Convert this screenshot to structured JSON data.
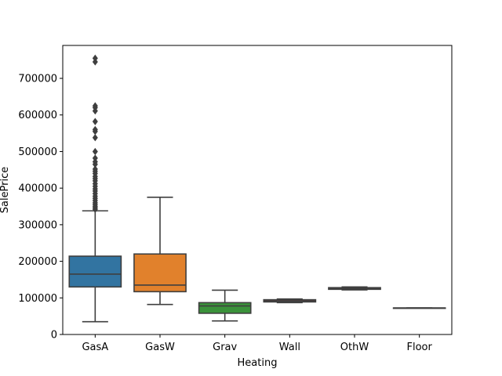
{
  "chart_data": {
    "type": "box",
    "xlabel": "Heating",
    "ylabel": "SalePrice",
    "categories": [
      "GasA",
      "GasW",
      "Grav",
      "Wall",
      "OthW",
      "Floor"
    ],
    "ylim": [
      0,
      790000
    ],
    "yticks": [
      0,
      100000,
      200000,
      300000,
      400000,
      500000,
      600000,
      700000
    ],
    "ytick_labels": [
      "0",
      "100000",
      "200000",
      "300000",
      "400000",
      "500000",
      "600000",
      "700000"
    ],
    "grid": false,
    "boxes": [
      {
        "category": "GasA",
        "color": "#3274a1",
        "whisker_low": 35000,
        "q1": 130000,
        "median": 165000,
        "q3": 214000,
        "whisker_high": 338000,
        "outliers": [
          342000,
          346000,
          350000,
          355000,
          360000,
          366000,
          372000,
          378000,
          385000,
          392000,
          398000,
          405000,
          412000,
          420000,
          426000,
          432000,
          440000,
          446000,
          452000,
          465000,
          472000,
          482000,
          500000,
          538000,
          555000,
          560000,
          582000,
          611000,
          620000,
          625000,
          745000,
          755000
        ]
      },
      {
        "category": "GasW",
        "color": "#e1812c",
        "whisker_low": 82000,
        "q1": 117000,
        "median": 135000,
        "q3": 220000,
        "whisker_high": 375000,
        "outliers": []
      },
      {
        "category": "Grav",
        "color": "#3a923a",
        "whisker_low": 37000,
        "q1": 58000,
        "median": 78000,
        "q3": 87000,
        "whisker_high": 121000,
        "outliers": []
      },
      {
        "category": "Wall",
        "color": "#c03d3e",
        "whisker_low": 87000,
        "q1": 89000,
        "median": 91500,
        "q3": 95000,
        "whisker_high": 97000,
        "outliers": []
      },
      {
        "category": "OthW",
        "color": "#9372b2",
        "whisker_low": 122000,
        "q1": 123500,
        "median": 125000,
        "q3": 128000,
        "whisker_high": 130000,
        "outliers": []
      },
      {
        "category": "Floor",
        "color": "#845b53",
        "whisker_low": 72500,
        "q1": 72500,
        "median": 72500,
        "q3": 72500,
        "whisker_high": 72500,
        "outliers": []
      }
    ]
  }
}
